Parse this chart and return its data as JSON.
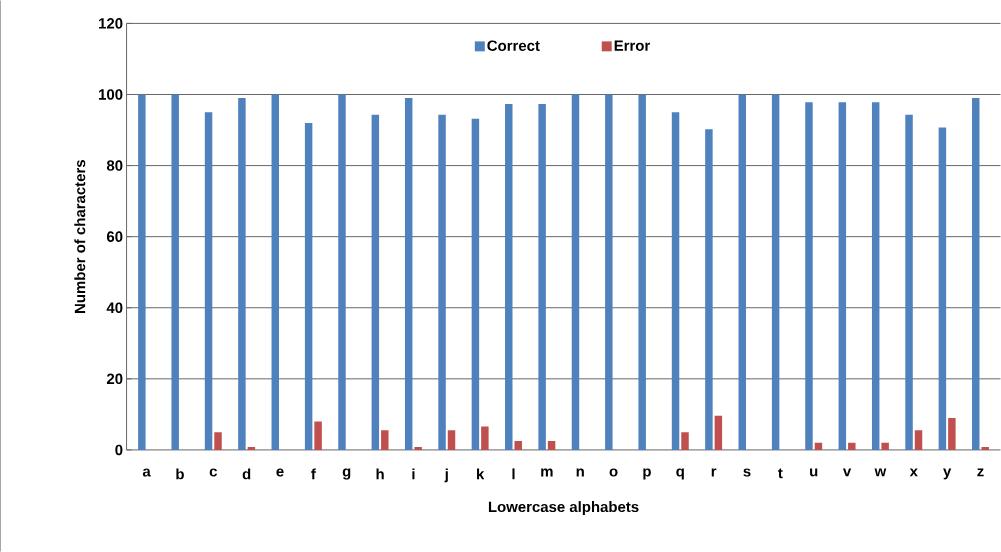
{
  "chart_data": {
    "type": "bar",
    "xlabel": "Lowercase alphabets",
    "ylabel": "Number of characters",
    "categories": [
      "a",
      "b",
      "c",
      "d",
      "e",
      "f",
      "g",
      "h",
      "i",
      "j",
      "k",
      "l",
      "m",
      "n",
      "o",
      "p",
      "q",
      "r",
      "s",
      "t",
      "u",
      "v",
      "w",
      "x",
      "y",
      "z"
    ],
    "series": [
      {
        "name": "Correct",
        "color": "#4f81bd",
        "values": [
          100,
          100,
          95,
          99,
          100,
          92,
          100,
          94.3,
          99,
          94.3,
          93.2,
          97.3,
          97.3,
          100,
          100,
          100,
          95,
          90.2,
          100,
          100,
          97.8,
          97.8,
          97.8,
          94.3,
          90.7,
          99
        ]
      },
      {
        "name": "Error",
        "color": "#c0504d",
        "values": [
          0,
          0,
          5,
          0.8,
          0,
          8,
          0,
          5.5,
          0.8,
          5.5,
          6.6,
          2.5,
          2.5,
          0,
          0,
          0,
          5,
          9.6,
          0,
          0,
          2,
          2,
          2,
          5.5,
          9,
          0.8
        ]
      }
    ],
    "ylim": [
      0,
      120
    ],
    "yticks": [
      0,
      20,
      40,
      60,
      80,
      100,
      120
    ],
    "grid": "y",
    "legend": "top"
  }
}
